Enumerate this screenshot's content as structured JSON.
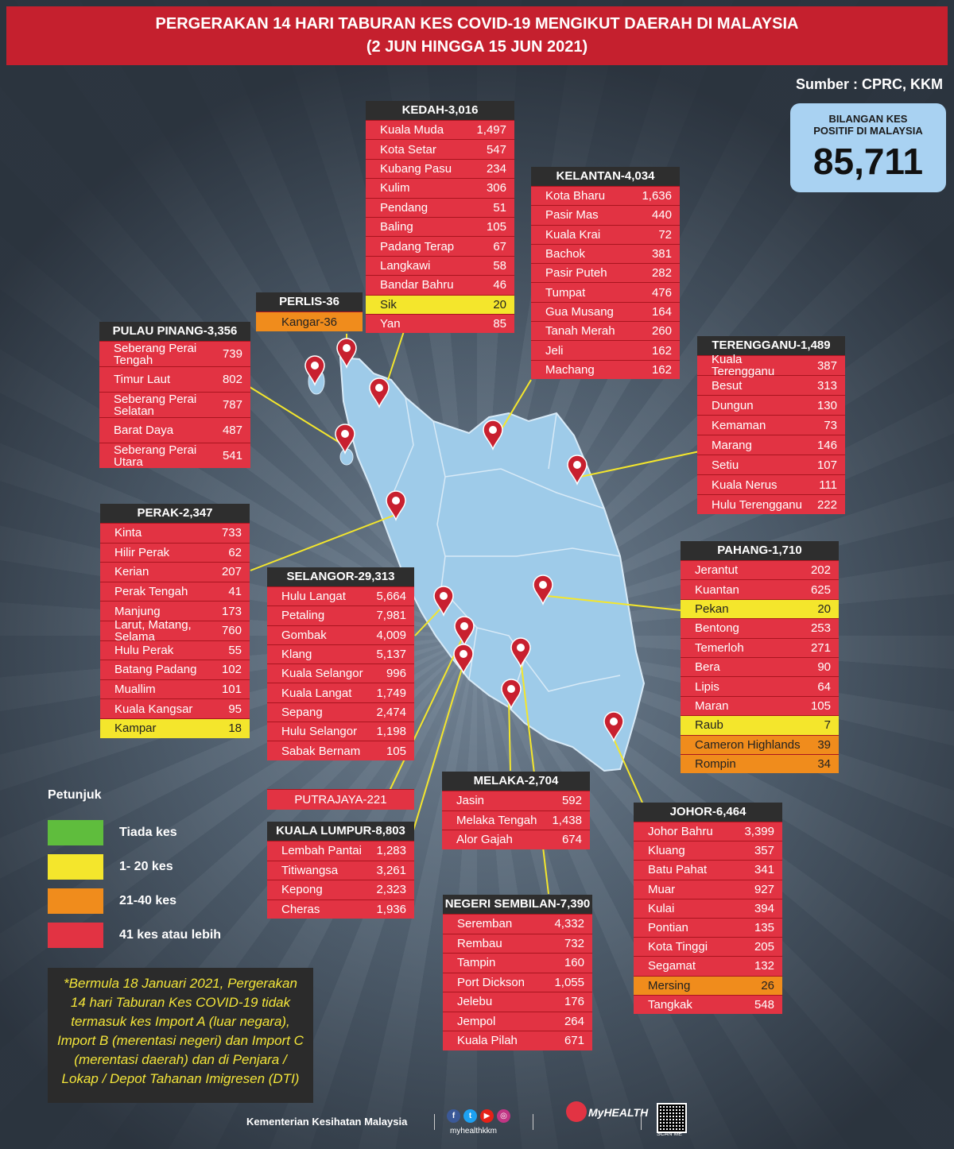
{
  "header": {
    "title_line1": "PERGERAKAN 14 HARI TABURAN KES COVID-19 MENGIKUT DAERAH DI MALAYSIA",
    "title_line2": "(2 JUN HINGGA 15 JUN 2021)"
  },
  "source": "Sumber : CPRC, KKM",
  "total": {
    "label_line1": "BILANGAN KES",
    "label_line2": "POSITIF DI MALAYSIA",
    "value": "85,711"
  },
  "states": [
    {
      "key": "kedah",
      "header": "KEDAH-3,016",
      "districts": [
        {
          "name": "Kuala Muda",
          "value": "1,497",
          "level": "red"
        },
        {
          "name": "Kota Setar",
          "value": "547",
          "level": "red"
        },
        {
          "name": "Kubang Pasu",
          "value": "234",
          "level": "red"
        },
        {
          "name": "Kulim",
          "value": "306",
          "level": "red"
        },
        {
          "name": "Pendang",
          "value": "51",
          "level": "red"
        },
        {
          "name": "Baling",
          "value": "105",
          "level": "red"
        },
        {
          "name": "Padang Terap",
          "value": "67",
          "level": "red"
        },
        {
          "name": "Langkawi",
          "value": "58",
          "level": "red"
        },
        {
          "name": "Bandar Bahru",
          "value": "46",
          "level": "red"
        },
        {
          "name": "Sik",
          "value": "20",
          "level": "yellow"
        },
        {
          "name": "Yan",
          "value": "85",
          "level": "red"
        }
      ]
    },
    {
      "key": "kelantan",
      "header": "KELANTAN-4,034",
      "districts": [
        {
          "name": "Kota Bharu",
          "value": "1,636",
          "level": "red"
        },
        {
          "name": "Pasir Mas",
          "value": "440",
          "level": "red"
        },
        {
          "name": "Kuala Krai",
          "value": "72",
          "level": "red"
        },
        {
          "name": "Bachok",
          "value": "381",
          "level": "red"
        },
        {
          "name": "Pasir Puteh",
          "value": "282",
          "level": "red"
        },
        {
          "name": "Tumpat",
          "value": "476",
          "level": "red"
        },
        {
          "name": "Gua Musang",
          "value": "164",
          "level": "red"
        },
        {
          "name": "Tanah Merah",
          "value": "260",
          "level": "red"
        },
        {
          "name": "Jeli",
          "value": "162",
          "level": "red"
        },
        {
          "name": "Machang",
          "value": "162",
          "level": "red"
        }
      ]
    },
    {
      "key": "perlis",
      "header": "PERLIS-36",
      "districts": [
        {
          "name": "Kangar-36",
          "value": "",
          "level": "orange"
        }
      ]
    },
    {
      "key": "pulau_pinang",
      "header": "PULAU PINANG-3,356",
      "districts": [
        {
          "name": "Seberang Perai\nTengah",
          "value": "739",
          "level": "red"
        },
        {
          "name": "Timur Laut",
          "value": "802",
          "level": "red"
        },
        {
          "name": "Seberang Perai\nSelatan",
          "value": "787",
          "level": "red"
        },
        {
          "name": "Barat Daya",
          "value": "487",
          "level": "red"
        },
        {
          "name": "Seberang Perai\nUtara",
          "value": "541",
          "level": "red"
        }
      ]
    },
    {
      "key": "terengganu",
      "header": "TERENGGANU-1,489",
      "districts": [
        {
          "name": "Kuala\nTerengganu",
          "value": "387",
          "level": "red"
        },
        {
          "name": "Besut",
          "value": "313",
          "level": "red"
        },
        {
          "name": "Dungun",
          "value": "130",
          "level": "red"
        },
        {
          "name": "Kemaman",
          "value": "73",
          "level": "red"
        },
        {
          "name": "Marang",
          "value": "146",
          "level": "red"
        },
        {
          "name": "Setiu",
          "value": "107",
          "level": "red"
        },
        {
          "name": "Kuala Nerus",
          "value": "111",
          "level": "red"
        },
        {
          "name": "Hulu Terengganu",
          "value": "222",
          "level": "red"
        }
      ]
    },
    {
      "key": "perak",
      "header": "PERAK-2,347",
      "districts": [
        {
          "name": "Kinta",
          "value": "733",
          "level": "red"
        },
        {
          "name": "Hilir Perak",
          "value": "62",
          "level": "red"
        },
        {
          "name": "Kerian",
          "value": "207",
          "level": "red"
        },
        {
          "name": "Perak Tengah",
          "value": "41",
          "level": "red"
        },
        {
          "name": "Manjung",
          "value": "173",
          "level": "red"
        },
        {
          "name": "Larut, Matang,\nSelama",
          "value": "760",
          "level": "red"
        },
        {
          "name": "Hulu Perak",
          "value": "55",
          "level": "red"
        },
        {
          "name": "Batang Padang",
          "value": "102",
          "level": "red"
        },
        {
          "name": "Muallim",
          "value": "101",
          "level": "red"
        },
        {
          "name": "Kuala Kangsar",
          "value": "95",
          "level": "red"
        },
        {
          "name": "Kampar",
          "value": "18",
          "level": "yellow"
        }
      ]
    },
    {
      "key": "selangor",
      "header": "SELANGOR-29,313",
      "districts": [
        {
          "name": "Hulu Langat",
          "value": "5,664",
          "level": "red"
        },
        {
          "name": "Petaling",
          "value": "7,981",
          "level": "red"
        },
        {
          "name": "Gombak",
          "value": "4,009",
          "level": "red"
        },
        {
          "name": "Klang",
          "value": "5,137",
          "level": "red"
        },
        {
          "name": "Kuala Selangor",
          "value": "996",
          "level": "red"
        },
        {
          "name": "Kuala Langat",
          "value": "1,749",
          "level": "red"
        },
        {
          "name": "Sepang",
          "value": "2,474",
          "level": "red"
        },
        {
          "name": "Hulu Selangor",
          "value": "1,198",
          "level": "red"
        },
        {
          "name": "Sabak Bernam",
          "value": "105",
          "level": "red"
        }
      ]
    },
    {
      "key": "pahang",
      "header": "PAHANG-1,710",
      "districts": [
        {
          "name": "Jerantut",
          "value": "202",
          "level": "red"
        },
        {
          "name": "Kuantan",
          "value": "625",
          "level": "red"
        },
        {
          "name": "Pekan",
          "value": "20",
          "level": "yellow"
        },
        {
          "name": "Bentong",
          "value": "253",
          "level": "red"
        },
        {
          "name": "Temerloh",
          "value": "271",
          "level": "red"
        },
        {
          "name": "Bera",
          "value": "90",
          "level": "red"
        },
        {
          "name": "Lipis",
          "value": "64",
          "level": "red"
        },
        {
          "name": "Maran",
          "value": "105",
          "level": "red"
        },
        {
          "name": "Raub",
          "value": "7",
          "level": "yellow"
        },
        {
          "name": "Cameron Highlands",
          "value": "39",
          "level": "orange"
        },
        {
          "name": "Rompin",
          "value": "34",
          "level": "orange"
        }
      ]
    },
    {
      "key": "putrajaya",
      "header": "",
      "districts": [
        {
          "name": "PUTRAJAYA-221",
          "value": "",
          "level": "red"
        }
      ]
    },
    {
      "key": "kuala_lumpur",
      "header": "KUALA LUMPUR-8,803",
      "districts": [
        {
          "name": "Lembah Pantai",
          "value": "1,283",
          "level": "red"
        },
        {
          "name": "Titiwangsa",
          "value": "3,261",
          "level": "red"
        },
        {
          "name": "Kepong",
          "value": "2,323",
          "level": "red"
        },
        {
          "name": "Cheras",
          "value": "1,936",
          "level": "red"
        }
      ]
    },
    {
      "key": "melaka",
      "header": "MELAKA-2,704",
      "districts": [
        {
          "name": "Jasin",
          "value": "592",
          "level": "red"
        },
        {
          "name": "Melaka Tengah",
          "value": "1,438",
          "level": "red"
        },
        {
          "name": "Alor Gajah",
          "value": "674",
          "level": "red"
        }
      ]
    },
    {
      "key": "negeri_sembilan",
      "header": "NEGERI SEMBILAN-7,390",
      "districts": [
        {
          "name": "Seremban",
          "value": "4,332",
          "level": "red"
        },
        {
          "name": "Rembau",
          "value": "732",
          "level": "red"
        },
        {
          "name": "Tampin",
          "value": "160",
          "level": "red"
        },
        {
          "name": "Port Dickson",
          "value": "1,055",
          "level": "red"
        },
        {
          "name": "Jelebu",
          "value": "176",
          "level": "red"
        },
        {
          "name": "Jempol",
          "value": "264",
          "level": "red"
        },
        {
          "name": "Kuala Pilah",
          "value": "671",
          "level": "red"
        }
      ]
    },
    {
      "key": "johor",
      "header": "JOHOR-6,464",
      "districts": [
        {
          "name": "Johor Bahru",
          "value": "3,399",
          "level": "red"
        },
        {
          "name": "Kluang",
          "value": "357",
          "level": "red"
        },
        {
          "name": "Batu Pahat",
          "value": "341",
          "level": "red"
        },
        {
          "name": "Muar",
          "value": "927",
          "level": "red"
        },
        {
          "name": "Kulai",
          "value": "394",
          "level": "red"
        },
        {
          "name": "Pontian",
          "value": "135",
          "level": "red"
        },
        {
          "name": "Kota Tinggi",
          "value": "205",
          "level": "red"
        },
        {
          "name": "Segamat",
          "value": "132",
          "level": "red"
        },
        {
          "name": "Mersing",
          "value": "26",
          "level": "orange"
        },
        {
          "name": "Tangkak",
          "value": "548",
          "level": "red"
        }
      ]
    }
  ],
  "legend": {
    "title": "Petunjuk",
    "items": [
      {
        "label": "Tiada kes",
        "color": "#5fbd3d"
      },
      {
        "label": "1- 20 kes",
        "color": "#f4e62c"
      },
      {
        "label": "21-40 kes",
        "color": "#f08c1c"
      },
      {
        "label": "41 kes atau lebih",
        "color": "#e23343"
      }
    ]
  },
  "note": "*Bermula 18 Januari 2021, Pergerakan 14 hari Taburan Kes COVID-19 tidak termasuk kes Import A (luar negara), Import B (merentasi negeri) dan Import C (merentasi daerah) dan di Penjara / Lokap / Depot Tahanan Imigresen (DTI)",
  "colors": {
    "red": "#e23343",
    "yellow": "#f4e62c",
    "orange": "#f08c1c",
    "land": "#9ecbe9"
  },
  "footer": {
    "ministry": "Kementerian Kesihatan Malaysia",
    "handle": "myhealthkkm",
    "brand": "MyHEALTH",
    "qr_label": "SCAN ME",
    "social_icons": [
      "facebook-icon",
      "twitter-icon",
      "youtube-icon",
      "instagram-icon"
    ]
  }
}
